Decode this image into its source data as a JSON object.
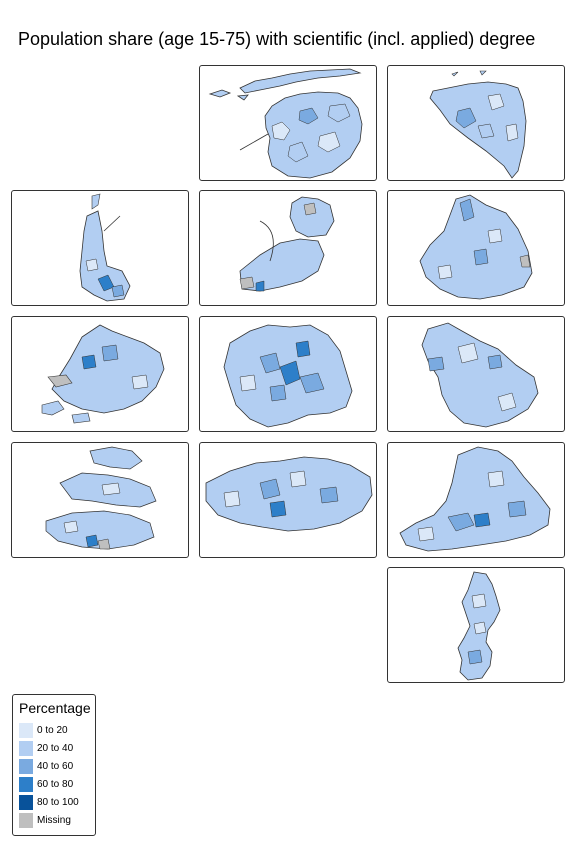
{
  "title": "Population share (age 15-75) with scientific (incl. applied) degree",
  "legend": {
    "title": "Percentage",
    "items": [
      {
        "label": "0 to 20",
        "color": "#dbe8f8"
      },
      {
        "label": "20 to 40",
        "color": "#b2cef2"
      },
      {
        "label": "40 to 60",
        "color": "#7aaae0"
      },
      {
        "label": "60 to 80",
        "color": "#2d7fc9"
      },
      {
        "label": "80 to 100",
        "color": "#08529a"
      },
      {
        "label": "Missing",
        "color": "#bfbfbf"
      }
    ]
  },
  "colors": {
    "border": "#333333",
    "background": "#ffffff"
  }
}
